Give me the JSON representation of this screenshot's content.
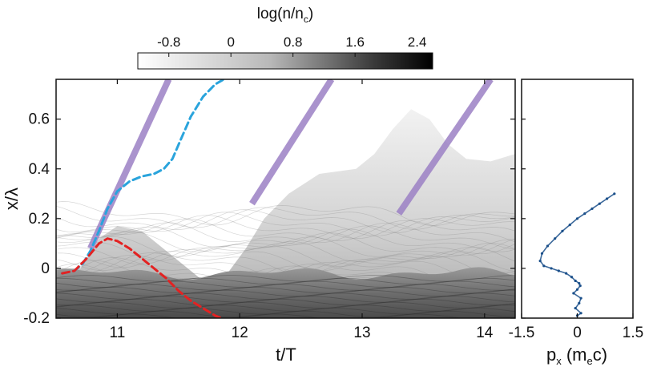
{
  "colorbar": {
    "label_base": "log(n/n",
    "label_sub": "c",
    "label_close": ")",
    "ticks": [
      "-0.8",
      "0",
      "0.8",
      "1.6",
      "2.4"
    ],
    "range": [
      -1.2,
      2.6
    ],
    "colors": {
      "low": "#ffffff",
      "high": "#000000"
    }
  },
  "chart_data": [
    {
      "type": "heatmap",
      "xlabel": "t/T",
      "ylabel": "x/λ",
      "xlim": [
        10.5,
        14.25
      ],
      "ylim": [
        -0.2,
        0.76
      ],
      "xticks": [
        11,
        12,
        13,
        14
      ],
      "xtick_labels": [
        "11",
        "12",
        "13",
        "14"
      ],
      "yticks": [
        -0.2,
        0,
        0.2,
        0.4,
        0.6
      ],
      "ytick_labels": [
        "-0.2",
        "0",
        "0.2",
        "0.4",
        "0.6"
      ],
      "laser_bands": {
        "color": "#9b80c4",
        "segments": [
          {
            "start": [
              10.78,
              0.08
            ],
            "end": [
              11.42,
              0.76
            ]
          },
          {
            "start": [
              12.1,
              0.26
            ],
            "end": [
              12.75,
              0.76
            ]
          },
          {
            "start": [
              13.3,
              0.22
            ],
            "end": [
              14.05,
              0.76
            ]
          }
        ]
      },
      "series": [
        {
          "color": "#2aa4dc",
          "style": "dashed",
          "x": [
            10.55,
            10.65,
            10.72,
            10.78,
            10.85,
            10.92,
            11.0,
            11.1,
            11.2,
            11.3,
            11.38,
            11.45,
            11.52,
            11.6,
            11.7,
            11.8,
            11.87
          ],
          "y": [
            -0.02,
            -0.01,
            0.02,
            0.07,
            0.15,
            0.24,
            0.31,
            0.35,
            0.37,
            0.38,
            0.4,
            0.44,
            0.52,
            0.61,
            0.69,
            0.74,
            0.76
          ]
        },
        {
          "color": "#e32222",
          "style": "dashed",
          "x": [
            10.55,
            10.65,
            10.75,
            10.85,
            10.92,
            11.0,
            11.1,
            11.2,
            11.3,
            11.4,
            11.5,
            11.6,
            11.7,
            11.8,
            11.85
          ],
          "y": [
            -0.02,
            -0.01,
            0.04,
            0.1,
            0.12,
            0.11,
            0.08,
            0.04,
            0.0,
            -0.04,
            -0.09,
            -0.13,
            -0.16,
            -0.19,
            -0.2
          ]
        }
      ]
    },
    {
      "type": "scatter",
      "xlabel_base": "p",
      "xlabel_sub": "x",
      "xlabel_unit_open": " (m",
      "xlabel_unit_sub": "e",
      "xlabel_unit_close": "c)",
      "xlim": [
        -1.5,
        1.5
      ],
      "ylim": [
        -0.2,
        0.76
      ],
      "xticks": [
        -1.5,
        0,
        1.5
      ],
      "xtick_labels": [
        "-1.5",
        "0",
        "1.5"
      ],
      "color": "#1a4f8a",
      "x": [
        1.0,
        0.8,
        0.6,
        0.4,
        0.2,
        0.0,
        -0.2,
        -0.4,
        -0.6,
        -0.8,
        -0.95,
        -1.0,
        -0.9,
        -0.7,
        -0.5,
        -0.3,
        -0.15,
        -0.05,
        0.05,
        0.08,
        0.0,
        -0.1,
        0.1,
        0.05,
        -0.05,
        0.1,
        0.0
      ],
      "y": [
        0.3,
        0.28,
        0.26,
        0.24,
        0.22,
        0.2,
        0.175,
        0.15,
        0.12,
        0.09,
        0.06,
        0.03,
        0.01,
        0.0,
        -0.01,
        -0.02,
        -0.035,
        -0.05,
        -0.06,
        -0.07,
        -0.085,
        -0.1,
        -0.12,
        -0.14,
        -0.16,
        -0.18,
        -0.19
      ]
    }
  ]
}
